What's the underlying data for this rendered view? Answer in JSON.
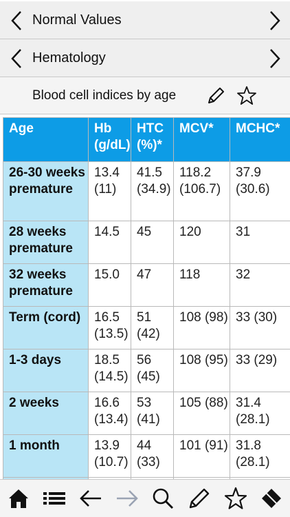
{
  "nav": {
    "level1": "Normal Values",
    "level2": "Hematology"
  },
  "page": {
    "title": "Blood cell indices by age"
  },
  "table": {
    "headers": [
      "Age",
      "Hb (g/dL)",
      "HTC (%)*",
      "MCV*",
      "MCHC*"
    ],
    "rows": [
      [
        "26-30 weeks premature",
        "13.4 (11)",
        "41.5 (34.9)",
        "118.2 (106.7)",
        "37.9 (30.6)"
      ],
      [
        "28 weeks premature",
        "14.5",
        "45",
        "120",
        "31"
      ],
      [
        "32 weeks premature",
        "15.0",
        "47",
        "118",
        "32"
      ],
      [
        "Term (cord)",
        "16.5 (13.5)",
        "51 (42)",
        "108 (98)",
        "33 (30)"
      ],
      [
        "1-3 days",
        "18.5 (14.5)",
        "56 (45)",
        "108 (95)",
        "33 (29)"
      ],
      [
        "2 weeks",
        "16.6 (13.4)",
        "53 (41)",
        "105 (88)",
        "31.4 (28.1)"
      ],
      [
        "1 month",
        "13.9 (10.7)",
        "44 (33)",
        "101 (91)",
        "31.8 (28.1)"
      ]
    ]
  },
  "toolbar": {
    "icons": [
      "home-icon",
      "list-icon",
      "back-arrow-icon",
      "forward-arrow-icon",
      "search-icon",
      "pencil-icon",
      "star-icon",
      "eraser-icon"
    ]
  },
  "colors": {
    "header_bg": "#0d9ce6",
    "age_col_bg": "#b9e5f6",
    "bar_bg": "#efefef",
    "disabled_icon": "#9aa3b3"
  }
}
